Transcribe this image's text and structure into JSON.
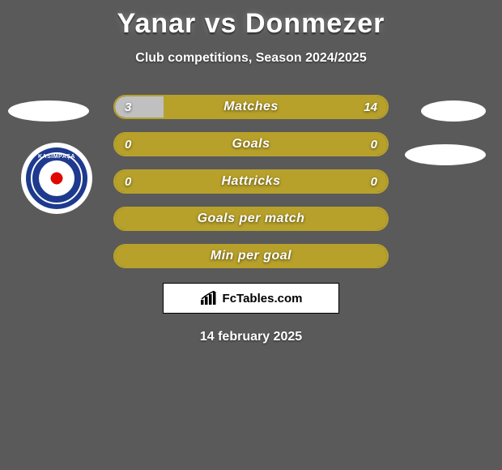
{
  "title": "Yanar vs Donmezer",
  "subtitle": "Club competitions, Season 2024/2025",
  "date": "14 february 2025",
  "colors": {
    "accent": "#b7a12a",
    "bar_border": "#b7a12a",
    "fill_left_alt": "#c0c0c0",
    "background": "#5a5a5a",
    "text": "#ffffff"
  },
  "stats": [
    {
      "label": "Matches",
      "left_value": "3",
      "right_value": "14",
      "left_fill_pct": 18,
      "right_fill_pct": 82,
      "left_color": "#c0c0c0",
      "right_color": "#b7a12a",
      "show_values": true
    },
    {
      "label": "Goals",
      "left_value": "0",
      "right_value": "0",
      "left_fill_pct": 0,
      "right_fill_pct": 100,
      "left_color": "#c0c0c0",
      "right_color": "#b7a12a",
      "show_values": true
    },
    {
      "label": "Hattricks",
      "left_value": "0",
      "right_value": "0",
      "left_fill_pct": 0,
      "right_fill_pct": 100,
      "left_color": "#c0c0c0",
      "right_color": "#b7a12a",
      "show_values": true
    },
    {
      "label": "Goals per match",
      "left_value": "",
      "right_value": "",
      "left_fill_pct": 0,
      "right_fill_pct": 100,
      "left_color": "#c0c0c0",
      "right_color": "#b7a12a",
      "show_values": false
    },
    {
      "label": "Min per goal",
      "left_value": "",
      "right_value": "",
      "left_fill_pct": 0,
      "right_fill_pct": 100,
      "left_color": "#c0c0c0",
      "right_color": "#b7a12a",
      "show_values": false
    }
  ],
  "brand": {
    "text": "FcTables.com"
  },
  "club_badge": {
    "name": "KASIMPAŞA",
    "ring_color": "#1e3a8f",
    "flag_red": "#e10600"
  }
}
